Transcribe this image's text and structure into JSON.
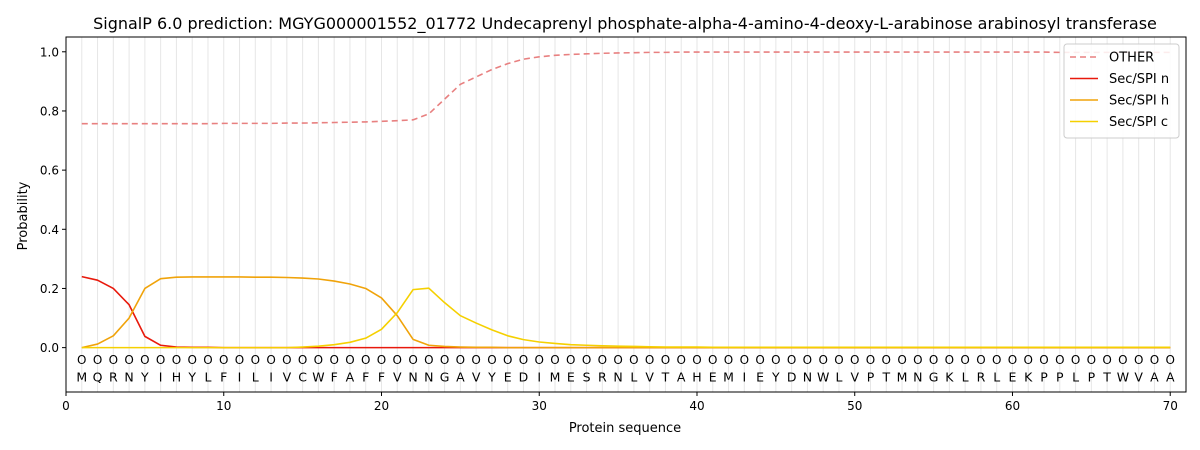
{
  "chart_data": {
    "type": "line",
    "title": "SignalP 6.0 prediction: MGYG000001552_01772 Undecaprenyl phosphate-alpha-4-amino-4-deoxy-L-arabinose arabinosyl transferase",
    "xlabel": "Protein sequence",
    "ylabel": "Probability",
    "xlim": [
      0,
      71
    ],
    "ylim": [
      -0.15,
      1.05
    ],
    "x_ticks": [
      0,
      10,
      20,
      30,
      40,
      50,
      60,
      70
    ],
    "y_ticks": [
      0.0,
      0.2,
      0.4,
      0.6,
      0.8,
      1.0
    ],
    "grid": "vertical lines at each residue",
    "legend_position": "top-right",
    "sequence": [
      "M",
      "Q",
      "R",
      "N",
      "Y",
      "I",
      "H",
      "Y",
      "L",
      "F",
      "I",
      "L",
      "I",
      "V",
      "C",
      "W",
      "F",
      "A",
      "F",
      "F",
      "V",
      "N",
      "N",
      "G",
      "A",
      "V",
      "Y",
      "E",
      "D",
      "I",
      "M",
      "E",
      "S",
      "R",
      "N",
      "L",
      "V",
      "T",
      "A",
      "H",
      "E",
      "M",
      "I",
      "E",
      "Y",
      "D",
      "N",
      "W",
      "L",
      "V",
      "P",
      "T",
      "M",
      "N",
      "G",
      "K",
      "L",
      "R",
      "L",
      "E",
      "K",
      "P",
      "P",
      "L",
      "P",
      "T",
      "W",
      "V",
      "A",
      "A"
    ],
    "marker_label": "O",
    "series": [
      {
        "name": "OTHER",
        "color": "#e88080",
        "style": "dashed",
        "values": [
          0.757,
          0.757,
          0.757,
          0.757,
          0.757,
          0.757,
          0.757,
          0.757,
          0.757,
          0.758,
          0.758,
          0.758,
          0.758,
          0.759,
          0.759,
          0.76,
          0.761,
          0.762,
          0.763,
          0.765,
          0.767,
          0.77,
          0.79,
          0.84,
          0.89,
          0.915,
          0.94,
          0.96,
          0.975,
          0.983,
          0.988,
          0.991,
          0.993,
          0.995,
          0.996,
          0.997,
          0.998,
          0.998,
          0.999,
          0.999,
          0.999,
          0.999,
          0.999,
          0.999,
          0.999,
          0.999,
          0.999,
          0.999,
          0.999,
          0.999,
          0.999,
          0.999,
          0.999,
          0.999,
          0.999,
          0.999,
          0.999,
          0.999,
          0.999,
          0.999,
          0.999,
          0.999,
          0.998,
          0.998,
          0.998,
          0.998,
          0.998,
          0.998,
          0.998,
          0.998
        ]
      },
      {
        "name": "Sec/SPI n",
        "color": "#e8190c",
        "style": "solid",
        "values": [
          0.24,
          0.228,
          0.2,
          0.145,
          0.038,
          0.008,
          0.002,
          0.001,
          0.001,
          0.0,
          0.0,
          0.0,
          0.0,
          0.0,
          0.0,
          0.0,
          0.0,
          0.0,
          0.0,
          0.0,
          0.0,
          0.0,
          0.0,
          0.0,
          0.0,
          0.0,
          0.0,
          0.0,
          0.0,
          0.0,
          0.0,
          0.0,
          0.0,
          0.0,
          0.0,
          0.0,
          0.0,
          0.0,
          0.0,
          0.0,
          0.0,
          0.0,
          0.0,
          0.0,
          0.0,
          0.0,
          0.0,
          0.0,
          0.0,
          0.0,
          0.0,
          0.0,
          0.0,
          0.0,
          0.0,
          0.0,
          0.0,
          0.0,
          0.0,
          0.0,
          0.0,
          0.0,
          0.0,
          0.0,
          0.0,
          0.0,
          0.0,
          0.0,
          0.0,
          0.0
        ]
      },
      {
        "name": "Sec/SPI h",
        "color": "#f0a30a",
        "style": "solid",
        "values": [
          0.0,
          0.012,
          0.04,
          0.1,
          0.2,
          0.233,
          0.238,
          0.239,
          0.239,
          0.239,
          0.239,
          0.238,
          0.238,
          0.237,
          0.235,
          0.232,
          0.225,
          0.215,
          0.2,
          0.168,
          0.108,
          0.028,
          0.008,
          0.004,
          0.002,
          0.001,
          0.001,
          0.0,
          0.0,
          0.0,
          0.0,
          0.0,
          0.0,
          0.0,
          0.0,
          0.0,
          0.0,
          0.0,
          0.0,
          0.0,
          0.0,
          0.0,
          0.0,
          0.0,
          0.0,
          0.0,
          0.0,
          0.0,
          0.0,
          0.0,
          0.0,
          0.0,
          0.0,
          0.0,
          0.0,
          0.0,
          0.0,
          0.0,
          0.0,
          0.0,
          0.0,
          0.0,
          0.0,
          0.0,
          0.0,
          0.0,
          0.0,
          0.0,
          0.0,
          0.0
        ]
      },
      {
        "name": "Sec/SPI c",
        "color": "#f5d000",
        "style": "solid",
        "values": [
          0.0,
          0.0,
          0.0,
          0.0,
          0.0,
          0.0,
          0.0,
          0.0,
          0.0,
          0.0,
          0.0,
          0.0,
          0.0,
          0.0,
          0.002,
          0.005,
          0.01,
          0.018,
          0.032,
          0.062,
          0.118,
          0.196,
          0.201,
          0.152,
          0.108,
          0.083,
          0.06,
          0.04,
          0.027,
          0.019,
          0.014,
          0.01,
          0.008,
          0.006,
          0.005,
          0.004,
          0.003,
          0.002,
          0.002,
          0.002,
          0.001,
          0.001,
          0.001,
          0.001,
          0.001,
          0.001,
          0.001,
          0.001,
          0.001,
          0.001,
          0.001,
          0.001,
          0.001,
          0.001,
          0.001,
          0.001,
          0.001,
          0.001,
          0.001,
          0.001,
          0.001,
          0.001,
          0.001,
          0.001,
          0.001,
          0.001,
          0.001,
          0.001,
          0.001,
          0.001
        ]
      }
    ]
  }
}
